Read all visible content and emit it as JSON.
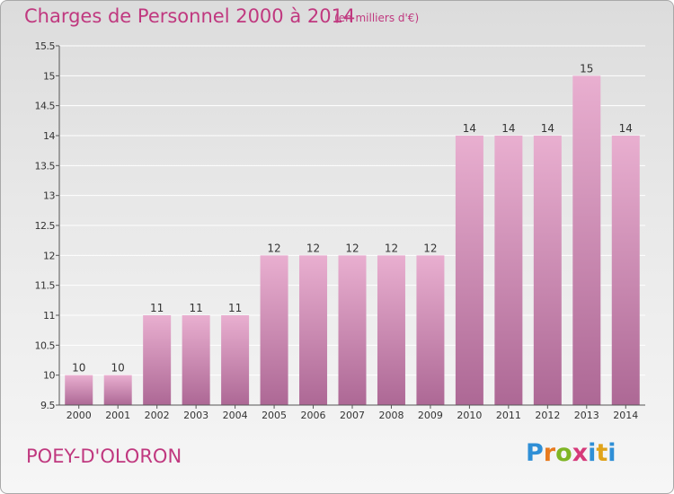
{
  "title": "Charges de Personnel 2000 à 2014",
  "unit": "(en milliers d'€)",
  "commune": "POEY-D'OLORON",
  "brand": "Proxiti",
  "colors": {
    "accent": "#c0387f",
    "bar_light": "#e9afd0",
    "bar_dark": "#ad6895",
    "axis": "#555555",
    "grid": "#ffffff"
  },
  "chart_data": {
    "type": "bar",
    "categories": [
      "2000",
      "2001",
      "2002",
      "2003",
      "2004",
      "2005",
      "2006",
      "2007",
      "2008",
      "2009",
      "2010",
      "2011",
      "2012",
      "2013",
      "2014"
    ],
    "values": [
      10,
      10,
      11,
      11,
      11,
      12,
      12,
      12,
      12,
      12,
      14,
      14,
      14,
      15,
      14
    ],
    "data_labels": [
      "10",
      "10",
      "11",
      "11",
      "11",
      "12",
      "12",
      "12",
      "12",
      "12",
      "14",
      "14",
      "14",
      "15",
      "14"
    ],
    "ylim": [
      9.5,
      15.5
    ],
    "yticks": [
      9.5,
      10,
      10.5,
      11,
      11.5,
      12,
      12.5,
      13,
      13.5,
      14,
      14.5,
      15,
      15.5
    ],
    "ytick_labels": [
      "9.5",
      "10",
      "10.5",
      "11",
      "11.5",
      "12",
      "12.5",
      "13",
      "13.5",
      "14",
      "14.5",
      "15",
      "15.5"
    ],
    "xlabel": "",
    "ylabel": "",
    "grid": true,
    "legend": "none"
  }
}
